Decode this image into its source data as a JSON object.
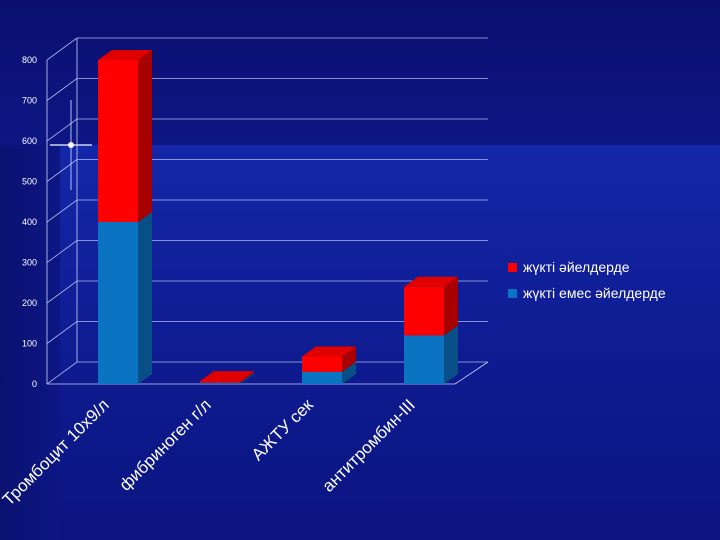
{
  "chart_data": {
    "type": "bar",
    "stacked": true,
    "three_d": true,
    "categories": [
      "Тромбоцит 10х9/л",
      "фибриноген г/л",
      "АЖТУ сек",
      "антитромбин-III"
    ],
    "series": [
      {
        "name": "жүкті емес әйелдерде",
        "color": "#0a73c2",
        "values": [
          400,
          3,
          30,
          120
        ]
      },
      {
        "name": "жүкті әйелдерде",
        "color": "#ff0000",
        "values": [
          400,
          4,
          38,
          120
        ]
      }
    ],
    "ylim": [
      0,
      800
    ],
    "yticks": [
      "0",
      "100",
      "200",
      "300",
      "400",
      "500",
      "600",
      "700",
      "800"
    ],
    "legend_position": "right",
    "grid": true
  }
}
